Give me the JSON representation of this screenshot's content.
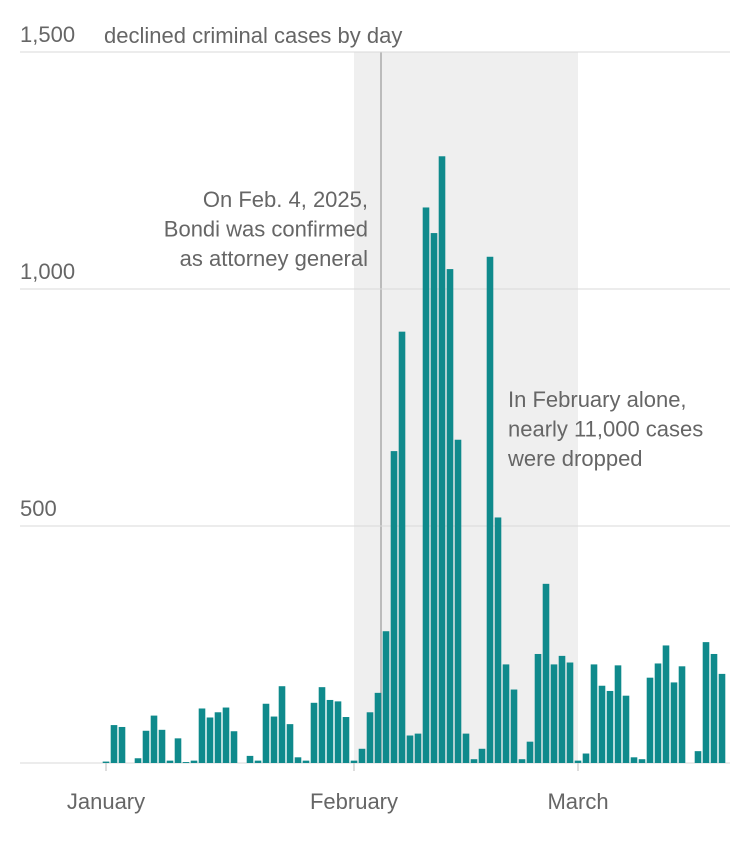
{
  "chart_data": {
    "type": "bar",
    "title": "declined criminal cases by day",
    "categories": [
      "January",
      null,
      null,
      null,
      null,
      null,
      null,
      null,
      null,
      null,
      null,
      null,
      null,
      null,
      null,
      null,
      null,
      null,
      null,
      null,
      null,
      null,
      null,
      null,
      null,
      null,
      null,
      null,
      null,
      null,
      null,
      "February",
      null,
      null,
      null,
      null,
      null,
      null,
      null,
      null,
      null,
      null,
      null,
      null,
      null,
      null,
      null,
      null,
      null,
      null,
      null,
      null,
      null,
      null,
      null,
      null,
      null,
      null,
      null,
      "March",
      null,
      null,
      null,
      null,
      null,
      null,
      null,
      null,
      null,
      null,
      null,
      null,
      null,
      null,
      null,
      null,
      null,
      null
    ],
    "values": [
      3,
      80,
      76,
      0,
      10,
      68,
      100,
      70,
      5,
      52,
      2,
      5,
      115,
      96,
      107,
      117,
      67,
      0,
      15,
      5,
      125,
      98,
      162,
      82,
      12,
      5,
      127,
      160,
      133,
      130,
      97,
      5,
      30,
      107,
      148,
      278,
      658,
      910,
      58,
      62,
      1172,
      1118,
      1280,
      1042,
      682,
      62,
      8,
      30,
      1068,
      518,
      208,
      155,
      8,
      45,
      230,
      378,
      208,
      226,
      212,
      5,
      20,
      208,
      163,
      152,
      206,
      142,
      12,
      8,
      180,
      210,
      248,
      170,
      204,
      0,
      25,
      255,
      230,
      188
    ],
    "color": "#0f8a8c",
    "ylim": [
      0,
      1500
    ],
    "yticks": [
      0,
      500,
      {
        "value": 1000,
        "label": "1,000"
      },
      {
        "value": 1500,
        "label": "1,500"
      }
    ],
    "grid": true,
    "annotations": [
      {
        "lines": [
          "On Feb. 4, 2025,",
          "Bondi was confirmed",
          "as attorney general"
        ]
      },
      {
        "lines": [
          "In February alone,",
          "nearly 11,000 cases",
          "were dropped"
        ]
      }
    ]
  }
}
